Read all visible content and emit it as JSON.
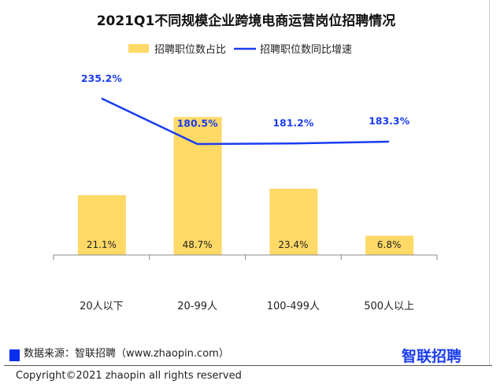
{
  "chart_data": {
    "type": "bar",
    "title": "2021Q1不同规模企业跨境电商运营岗位招聘情况",
    "categories": [
      "20人以下",
      "20-99人",
      "100-499人",
      "500人以上"
    ],
    "series": [
      {
        "name": "招聘职位数占比",
        "type": "bar",
        "values": [
          21.1,
          48.7,
          23.4,
          6.8
        ],
        "labels": [
          "21.1%",
          "48.7%",
          "23.4%",
          "6.8%"
        ],
        "color": "#ffd966"
      },
      {
        "name": "招聘职位数同比增速",
        "type": "line",
        "values": [
          235.2,
          180.5,
          181.2,
          183.3
        ],
        "labels": [
          "235.2%",
          "180.5%",
          "181.2%",
          "183.3%"
        ],
        "color": "#1a3cf0"
      }
    ],
    "legend": "top",
    "grid": false
  },
  "footer": {
    "source": "数据来源：智联招聘（www.zhaopin.com）",
    "logo": "智联招聘",
    "copyright": "Copyright©2021 zhaopin all rights reserved"
  }
}
